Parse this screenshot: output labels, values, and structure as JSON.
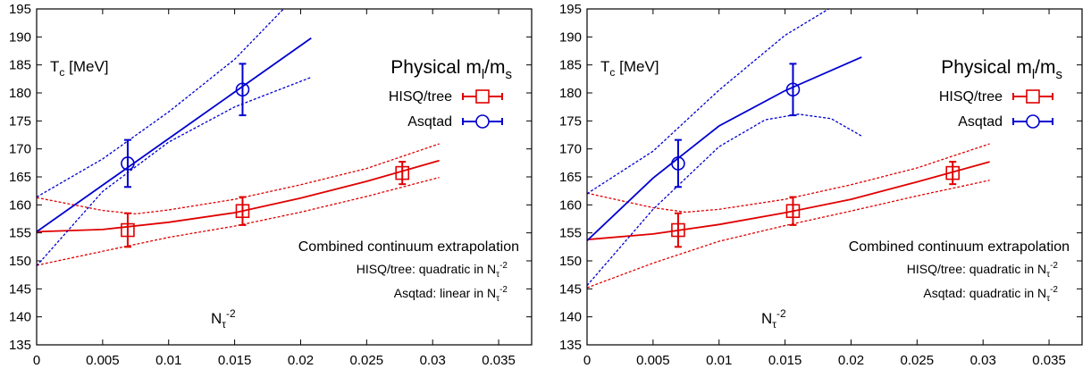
{
  "chart_data": [
    {
      "type": "scatter",
      "title": "Physical m_l/m_s",
      "ytitle": "T_c [MeV]",
      "xtitle": "N_τ^-2",
      "xlim": [
        0,
        0.0375
      ],
      "ylim": [
        135,
        195
      ],
      "xticks": [
        0,
        0.005,
        0.01,
        0.015,
        0.02,
        0.025,
        0.03,
        0.035
      ],
      "xtick_labels": [
        "0",
        "0.005",
        "0.01",
        "0.015",
        "0.02",
        "0.025",
        "0.03",
        "0.035"
      ],
      "yticks": [
        135,
        140,
        145,
        150,
        155,
        160,
        165,
        170,
        175,
        180,
        185,
        190,
        195
      ],
      "yticklabels": [
        "135",
        "140",
        "145",
        "150",
        "155",
        "160",
        "165",
        "170",
        "175",
        "180",
        "185",
        "190",
        "195"
      ],
      "grid": false,
      "legend_position": "top-right",
      "annotation": {
        "heading": "Combined continuum extrapolation",
        "hisq_line": "HISQ/tree: quadratic in N_τ^-2",
        "asqtad_line": "Asqtad: linear in N_τ^-2"
      },
      "series": [
        {
          "name": "HISQ/tree",
          "color": "#e00000",
          "marker": "square",
          "points": [
            {
              "x": 0.0069,
              "y": 155.5,
              "err": 3.0
            },
            {
              "x": 0.0156,
              "y": 158.9,
              "err": 2.5
            },
            {
              "x": 0.0277,
              "y": 165.7,
              "err": 2.0
            }
          ],
          "fit": {
            "x": [
              0,
              0.005,
              0.01,
              0.015,
              0.02,
              0.025,
              0.0305
            ],
            "y": [
              155.2,
              155.6,
              156.9,
              158.6,
              161.2,
              164.2,
              167.9
            ]
          },
          "band_upper": {
            "x": [
              0,
              0.005,
              0.0075,
              0.01,
              0.015,
              0.02,
              0.025,
              0.0305
            ],
            "y": [
              161.3,
              159.0,
              158.4,
              159.1,
              161.0,
              163.6,
              166.5,
              170.9
            ]
          },
          "band_lower": {
            "x": [
              0,
              0.005,
              0.01,
              0.015,
              0.02,
              0.025,
              0.0305
            ],
            "y": [
              149.2,
              151.7,
              154.2,
              156.2,
              158.7,
              161.5,
              164.9
            ]
          }
        },
        {
          "name": "Asqtad",
          "color": "#0000d0",
          "marker": "circle",
          "points": [
            {
              "x": 0.0069,
              "y": 167.4,
              "err": 4.2
            },
            {
              "x": 0.0156,
              "y": 180.6,
              "err": 4.6
            }
          ],
          "fit": {
            "x": [
              0,
              0.0208
            ],
            "y": [
              155.2,
              189.8
            ]
          },
          "band_upper": {
            "x": [
              0,
              0.005,
              0.01,
              0.015,
              0.0187
            ],
            "y": [
              161.4,
              168.2,
              176.6,
              186.0,
              195.0
            ]
          },
          "band_lower": {
            "x": [
              0,
              0.005,
              0.01,
              0.015,
              0.0208
            ],
            "y": [
              149.1,
              162.4,
              171.2,
              177.5,
              182.8
            ]
          }
        }
      ]
    },
    {
      "type": "scatter",
      "title": "Physical m_l/m_s",
      "ytitle": "T_c [MeV]",
      "xtitle": "N_τ^-2",
      "xlim": [
        0,
        0.0375
      ],
      "ylim": [
        135,
        195
      ],
      "xticks": [
        0,
        0.005,
        0.01,
        0.015,
        0.02,
        0.025,
        0.03,
        0.035
      ],
      "xtick_labels": [
        "0",
        "0.005",
        "0.01",
        "0.015",
        "0.02",
        "0.025",
        "0.03",
        "0.035"
      ],
      "yticks": [
        135,
        140,
        145,
        150,
        155,
        160,
        165,
        170,
        175,
        180,
        185,
        190,
        195
      ],
      "yticklabels": [
        "135",
        "140",
        "145",
        "150",
        "155",
        "160",
        "165",
        "170",
        "175",
        "180",
        "185",
        "190",
        "195"
      ],
      "grid": false,
      "legend_position": "top-right",
      "annotation": {
        "heading": "Combined continuum extrapolation",
        "hisq_line": "HISQ/tree: quadratic in N_τ^-2",
        "asqtad_line": "Asqtad: quadratic in N_τ^-2"
      },
      "series": [
        {
          "name": "HISQ/tree",
          "color": "#e00000",
          "marker": "square",
          "points": [
            {
              "x": 0.0069,
              "y": 155.5,
              "err": 3.0
            },
            {
              "x": 0.0156,
              "y": 158.9,
              "err": 2.5
            },
            {
              "x": 0.0277,
              "y": 165.7,
              "err": 2.0
            }
          ],
          "fit": {
            "x": [
              0,
              0.005,
              0.01,
              0.015,
              0.02,
              0.025,
              0.0305
            ],
            "y": [
              153.8,
              154.8,
              156.5,
              158.6,
              161.0,
              164.1,
              167.7
            ]
          },
          "band_upper": {
            "x": [
              0,
              0.005,
              0.0075,
              0.01,
              0.015,
              0.02,
              0.025,
              0.0305
            ],
            "y": [
              162.1,
              159.5,
              158.7,
              159.2,
              161.0,
              163.6,
              166.6,
              170.9
            ]
          },
          "band_lower": {
            "x": [
              0,
              0.005,
              0.01,
              0.015,
              0.02,
              0.025,
              0.0305
            ],
            "y": [
              145.2,
              149.6,
              153.5,
              156.3,
              158.9,
              161.6,
              164.4
            ]
          }
        },
        {
          "name": "Asqtad",
          "color": "#0000d0",
          "marker": "circle",
          "points": [
            {
              "x": 0.0069,
              "y": 167.4,
              "err": 4.2
            },
            {
              "x": 0.0156,
              "y": 180.6,
              "err": 4.6
            }
          ],
          "fit": {
            "x": [
              0,
              0.005,
              0.01,
              0.015,
              0.0208
            ],
            "y": [
              153.6,
              164.8,
              174.1,
              180.4,
              186.4
            ]
          },
          "band_upper": {
            "x": [
              0,
              0.005,
              0.01,
              0.015,
              0.0183
            ],
            "y": [
              162.0,
              169.6,
              180.5,
              190.3,
              195.0
            ]
          },
          "band_lower": {
            "x": [
              0,
              0.005,
              0.01,
              0.0135,
              0.016,
              0.0185,
              0.0208
            ],
            "y": [
              145.6,
              159.2,
              170.4,
              175.2,
              176.2,
              175.4,
              172.3
            ]
          }
        }
      ]
    }
  ]
}
